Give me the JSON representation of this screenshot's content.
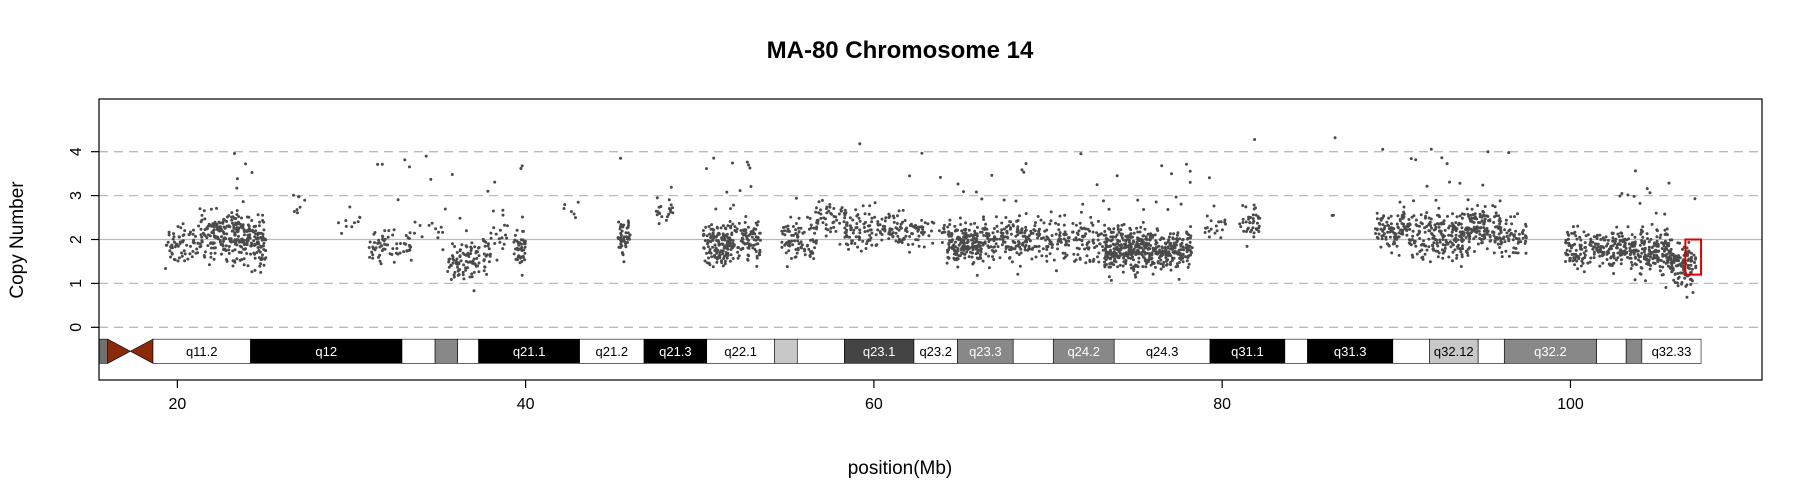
{
  "chart_data": {
    "type": "scatter",
    "title": "MA-80  Chromosome 14",
    "xlabel": "position(Mb)",
    "ylabel": "Copy Number",
    "xlim": [
      15.5,
      111
    ],
    "ylim": [
      -1.2,
      5.2
    ],
    "x_ticks": [
      20,
      40,
      60,
      80,
      100
    ],
    "y_ticks": [
      0,
      1,
      2,
      3,
      4
    ],
    "grid": "dashed horizontal lines at 0, 1, 3 and 4; solid light line at 2",
    "colors": {
      "points": "#4a4a4a",
      "highlight_box": "#e00000",
      "centromere": "#8b2a0a",
      "gridline": "#bbbbbb",
      "axis": "#000000"
    },
    "point_clusters": [
      {
        "x_range": [
          19.3,
          21.3
        ],
        "count": 70,
        "center": 1.9,
        "spread": 0.55
      },
      {
        "x_range": [
          21.3,
          23.6
        ],
        "count": 180,
        "center": 2.1,
        "spread": 0.75
      },
      {
        "x_range": [
          23.6,
          25.1
        ],
        "count": 130,
        "center": 2.0,
        "spread": 0.75
      },
      {
        "x_range": [
          26.5,
          27.5
        ],
        "count": 8,
        "center": 2.7,
        "spread": 0.5
      },
      {
        "x_range": [
          29.0,
          31.0
        ],
        "count": 10,
        "center": 2.3,
        "spread": 0.6
      },
      {
        "x_range": [
          31.0,
          33.5
        ],
        "count": 70,
        "center": 1.9,
        "spread": 0.55
      },
      {
        "x_range": [
          33.5,
          35.5
        ],
        "count": 15,
        "center": 2.2,
        "spread": 0.6
      },
      {
        "x_range": [
          35.5,
          38.0
        ],
        "count": 110,
        "center": 1.6,
        "spread": 0.65
      },
      {
        "x_range": [
          38.0,
          39.0
        ],
        "count": 20,
        "center": 2.2,
        "spread": 0.6
      },
      {
        "x_range": [
          39.3,
          40.0
        ],
        "count": 45,
        "center": 1.8,
        "spread": 0.6
      },
      {
        "x_range": [
          42.0,
          43.5
        ],
        "count": 6,
        "center": 2.6,
        "spread": 0.4
      },
      {
        "x_range": [
          45.3,
          46.0
        ],
        "count": 50,
        "center": 2.0,
        "spread": 0.55
      },
      {
        "x_range": [
          47.5,
          48.5
        ],
        "count": 20,
        "center": 2.7,
        "spread": 0.5
      },
      {
        "x_range": [
          50.2,
          51.8
        ],
        "count": 150,
        "center": 1.9,
        "spread": 0.6
      },
      {
        "x_range": [
          51.8,
          53.5
        ],
        "count": 100,
        "center": 2.0,
        "spread": 0.6
      },
      {
        "x_range": [
          54.7,
          56.7
        ],
        "count": 90,
        "center": 2.0,
        "spread": 0.7
      },
      {
        "x_range": [
          56.7,
          58.4
        ],
        "count": 55,
        "center": 2.5,
        "spread": 0.6
      },
      {
        "x_range": [
          58.4,
          61.0
        ],
        "count": 100,
        "center": 2.2,
        "spread": 0.6
      },
      {
        "x_range": [
          61.0,
          63.0
        ],
        "count": 70,
        "center": 2.2,
        "spread": 0.55
      },
      {
        "x_range": [
          63.0,
          64.2
        ],
        "count": 15,
        "center": 2.2,
        "spread": 0.5
      },
      {
        "x_range": [
          64.2,
          66.2
        ],
        "count": 190,
        "center": 1.9,
        "spread": 0.55
      },
      {
        "x_range": [
          66.2,
          68.7
        ],
        "count": 140,
        "center": 2.0,
        "spread": 0.6
      },
      {
        "x_range": [
          68.7,
          71.5
        ],
        "count": 110,
        "center": 2.0,
        "spread": 0.6
      },
      {
        "x_range": [
          71.5,
          73.2
        ],
        "count": 70,
        "center": 2.0,
        "spread": 0.6
      },
      {
        "x_range": [
          73.2,
          76.3
        ],
        "count": 330,
        "center": 1.8,
        "spread": 0.65
      },
      {
        "x_range": [
          76.3,
          78.3
        ],
        "count": 160,
        "center": 1.8,
        "spread": 0.6
      },
      {
        "x_range": [
          79.0,
          80.2
        ],
        "count": 20,
        "center": 2.3,
        "spread": 0.5
      },
      {
        "x_range": [
          81.0,
          82.2
        ],
        "count": 40,
        "center": 2.4,
        "spread": 0.5
      },
      {
        "x_range": [
          86.3,
          86.6
        ],
        "count": 3,
        "center": 2.5,
        "spread": 0.2
      },
      {
        "x_range": [
          88.8,
          90.7
        ],
        "count": 100,
        "center": 2.2,
        "spread": 0.55
      },
      {
        "x_range": [
          90.7,
          94.2
        ],
        "count": 230,
        "center": 2.1,
        "spread": 0.7
      },
      {
        "x_range": [
          94.2,
          96.0
        ],
        "count": 130,
        "center": 2.3,
        "spread": 0.65
      },
      {
        "x_range": [
          96.0,
          97.5
        ],
        "count": 60,
        "center": 2.0,
        "spread": 0.55
      },
      {
        "x_range": [
          99.7,
          101.8
        ],
        "count": 110,
        "center": 1.8,
        "spread": 0.6
      },
      {
        "x_range": [
          101.8,
          104.0
        ],
        "count": 150,
        "center": 1.8,
        "spread": 0.6
      },
      {
        "x_range": [
          104.0,
          105.8
        ],
        "count": 150,
        "center": 1.7,
        "spread": 0.6
      },
      {
        "x_range": [
          105.8,
          107.2
        ],
        "count": 110,
        "center": 1.4,
        "spread": 0.6
      }
    ],
    "highlight_segment": {
      "x_range": [
        106.6,
        107.5
      ],
      "y_range": [
        1.2,
        2.0
      ]
    },
    "ideogram": {
      "y_range": [
        -0.82,
        -0.27
      ],
      "bands": [
        {
          "start": 15.5,
          "end": 16.0,
          "label": "",
          "stain": "gvar"
        },
        {
          "start": 16.0,
          "end": 17.3,
          "label": "",
          "stain": "acen_p"
        },
        {
          "start": 17.3,
          "end": 18.6,
          "label": "",
          "stain": "acen_q"
        },
        {
          "start": 18.6,
          "end": 24.2,
          "label": "q11.2",
          "stain": "gneg"
        },
        {
          "start": 24.2,
          "end": 32.9,
          "label": "q12",
          "stain": "gpos100"
        },
        {
          "start": 32.9,
          "end": 34.8,
          "label": "",
          "stain": "gneg"
        },
        {
          "start": 34.8,
          "end": 36.1,
          "label": "",
          "stain": "gpos50"
        },
        {
          "start": 36.1,
          "end": 37.3,
          "label": "",
          "stain": "gneg"
        },
        {
          "start": 37.3,
          "end": 43.1,
          "label": "q21.1",
          "stain": "gpos100"
        },
        {
          "start": 43.1,
          "end": 46.8,
          "label": "q21.2",
          "stain": "gneg"
        },
        {
          "start": 46.8,
          "end": 50.4,
          "label": "q21.3",
          "stain": "gpos100"
        },
        {
          "start": 50.4,
          "end": 54.3,
          "label": "q22.1",
          "stain": "gneg"
        },
        {
          "start": 54.3,
          "end": 55.6,
          "label": "",
          "stain": "gpos25"
        },
        {
          "start": 55.6,
          "end": 58.3,
          "label": "",
          "stain": "gneg"
        },
        {
          "start": 58.3,
          "end": 62.3,
          "label": "q23.1",
          "stain": "gpos75"
        },
        {
          "start": 62.3,
          "end": 64.8,
          "label": "q23.2",
          "stain": "gneg"
        },
        {
          "start": 64.8,
          "end": 68.0,
          "label": "q23.3",
          "stain": "gpos50"
        },
        {
          "start": 68.0,
          "end": 70.3,
          "label": "",
          "stain": "gneg"
        },
        {
          "start": 70.3,
          "end": 73.8,
          "label": "q24.2",
          "stain": "gpos50"
        },
        {
          "start": 73.8,
          "end": 79.3,
          "label": "q24.3",
          "stain": "gneg"
        },
        {
          "start": 79.3,
          "end": 83.6,
          "label": "q31.1",
          "stain": "gpos100"
        },
        {
          "start": 83.6,
          "end": 84.9,
          "label": "",
          "stain": "gneg"
        },
        {
          "start": 84.9,
          "end": 89.8,
          "label": "q31.3",
          "stain": "gpos100"
        },
        {
          "start": 89.8,
          "end": 91.9,
          "label": "",
          "stain": "gneg"
        },
        {
          "start": 91.9,
          "end": 94.7,
          "label": "q32.12",
          "stain": "gpos25"
        },
        {
          "start": 94.7,
          "end": 96.2,
          "label": "",
          "stain": "gneg"
        },
        {
          "start": 96.2,
          "end": 101.5,
          "label": "q32.2",
          "stain": "gpos50"
        },
        {
          "start": 101.5,
          "end": 103.2,
          "label": "",
          "stain": "gneg"
        },
        {
          "start": 103.2,
          "end": 104.1,
          "label": "",
          "stain": "gpos50"
        },
        {
          "start": 104.1,
          "end": 107.5,
          "label": "q32.33",
          "stain": "gneg"
        }
      ]
    }
  }
}
